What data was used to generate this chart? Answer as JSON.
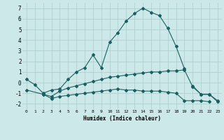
{
  "x": [
    0,
    1,
    2,
    3,
    4,
    5,
    6,
    7,
    8,
    9,
    10,
    11,
    12,
    13,
    14,
    15,
    16,
    17,
    18,
    19,
    20,
    21,
    22,
    23
  ],
  "line1": [
    0.3,
    -0.2,
    -1.0,
    -0.7,
    -0.6,
    0.3,
    1.0,
    1.4,
    2.6,
    1.4,
    3.8,
    4.7,
    5.8,
    6.5,
    7.0,
    6.6,
    6.3,
    5.1,
    3.4,
    1.3,
    null,
    null,
    null,
    null
  ],
  "line2": [
    null,
    null,
    null,
    null,
    null,
    null,
    null,
    null,
    null,
    null,
    null,
    null,
    null,
    null,
    null,
    null,
    null,
    null,
    null,
    null,
    -0.3,
    -1.1,
    -1.1,
    -1.7
  ],
  "line3": [
    -0.7,
    null,
    -1.1,
    -1.3,
    -0.8,
    -0.5,
    -0.3,
    -0.1,
    0.1,
    0.3,
    0.5,
    0.6,
    0.7,
    0.8,
    0.9,
    1.0,
    1.0,
    1.1,
    1.1,
    1.2,
    -0.4,
    -1.1,
    -1.1,
    -1.8
  ],
  "line4": [
    null,
    null,
    -1.1,
    -1.5,
    -1.3,
    -1.2,
    -1.1,
    -1.0,
    -0.9,
    -0.8,
    -0.7,
    -0.6,
    -0.7,
    -0.7,
    -0.8,
    -0.8,
    -0.8,
    -0.9,
    -1.0,
    -1.7,
    -1.7,
    -1.7,
    -1.8,
    null
  ],
  "xlabel": "Humidex (Indice chaleur)",
  "ylim": [
    -2.5,
    7.5
  ],
  "xlim": [
    -0.5,
    23.5
  ],
  "bg_color": "#cde8e8",
  "grid_color": "#aacccc",
  "line_color": "#1a6060",
  "marker": "D",
  "markersize": 2.0,
  "linewidth": 0.8
}
